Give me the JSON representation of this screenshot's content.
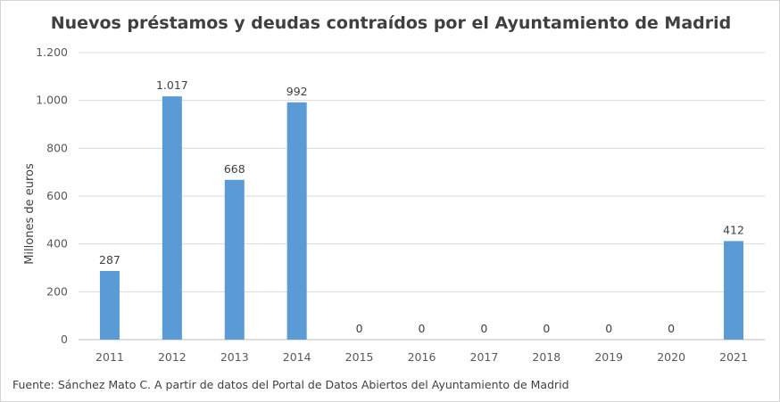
{
  "chart_data": {
    "type": "bar",
    "title": "Nuevos préstamos y deudas contraídos por el Ayuntamiento de Madrid",
    "xlabel": "",
    "ylabel": "Millones de euros",
    "categories": [
      "2011",
      "2012",
      "2013",
      "2014",
      "2015",
      "2016",
      "2017",
      "2018",
      "2019",
      "2020",
      "2021"
    ],
    "values": [
      287,
      1017,
      668,
      992,
      0,
      0,
      0,
      0,
      0,
      0,
      412
    ],
    "value_labels": [
      "287",
      "1.017",
      "668",
      "992",
      "0",
      "0",
      "0",
      "0",
      "0",
      "0",
      "412"
    ],
    "ylim": [
      0,
      1200
    ],
    "yticks": [
      0,
      200,
      400,
      600,
      800,
      1000,
      1200
    ],
    "ytick_labels": [
      "0",
      "200",
      "400",
      "600",
      "800",
      "1.000",
      "1.200"
    ],
    "grid": true,
    "legend": "none",
    "bar_color": "#5b9bd5"
  },
  "source_note": "Fuente: Sánchez Mato C.  A partir de datos del Portal de Datos Abiertos del Ayuntamiento de Madrid"
}
